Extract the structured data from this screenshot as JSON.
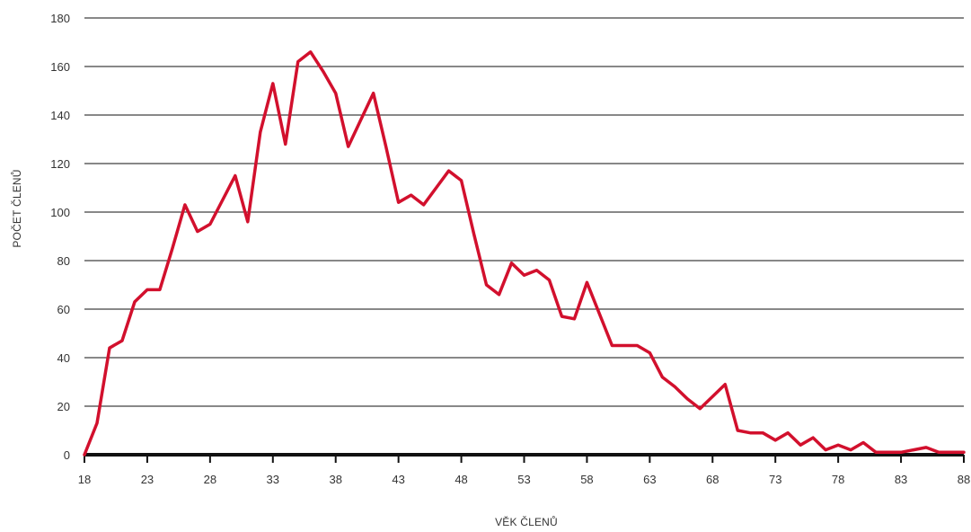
{
  "chart_data": {
    "type": "line",
    "title": "",
    "xlabel": "VĚK ČLENŮ",
    "ylabel": "POČET ČLENŮ",
    "xlim": [
      18,
      88
    ],
    "ylim": [
      0,
      180
    ],
    "x_ticks": [
      18,
      23,
      28,
      33,
      38,
      43,
      48,
      53,
      58,
      63,
      68,
      73,
      78,
      83,
      88
    ],
    "y_ticks": [
      0,
      20,
      40,
      60,
      80,
      100,
      120,
      140,
      160,
      180
    ],
    "grid": true,
    "legend": "none",
    "line_color": "#d2102d",
    "series": [
      {
        "x": [
          18,
          19,
          20,
          21,
          22,
          23,
          24,
          25,
          26,
          27,
          28,
          29,
          30,
          31,
          32,
          33,
          34,
          35,
          36,
          37,
          38,
          39,
          40,
          41,
          42,
          43,
          44,
          45,
          46,
          47,
          48,
          49,
          50,
          51,
          52,
          53,
          54,
          55,
          56,
          57,
          58,
          59,
          60,
          61,
          62,
          63,
          64,
          65,
          66,
          67,
          68,
          69,
          70,
          71,
          72,
          73,
          74,
          75,
          76,
          77,
          78,
          79,
          80,
          81,
          82,
          83,
          84,
          85,
          86,
          87,
          88
        ],
        "values": [
          0,
          13,
          44,
          47,
          63,
          68,
          68,
          85,
          103,
          92,
          95,
          105,
          115,
          96,
          133,
          153,
          128,
          162,
          166,
          158,
          149,
          127,
          138,
          149,
          127,
          104,
          107,
          103,
          110,
          117,
          113,
          91,
          70,
          66,
          79,
          74,
          76,
          72,
          57,
          56,
          71,
          58,
          45,
          45,
          45,
          42,
          32,
          28,
          23,
          19,
          24,
          29,
          10,
          9,
          9,
          6,
          9,
          4,
          7,
          2,
          4,
          2,
          5,
          1,
          1,
          1,
          2,
          3,
          1,
          1,
          1
        ]
      }
    ]
  }
}
